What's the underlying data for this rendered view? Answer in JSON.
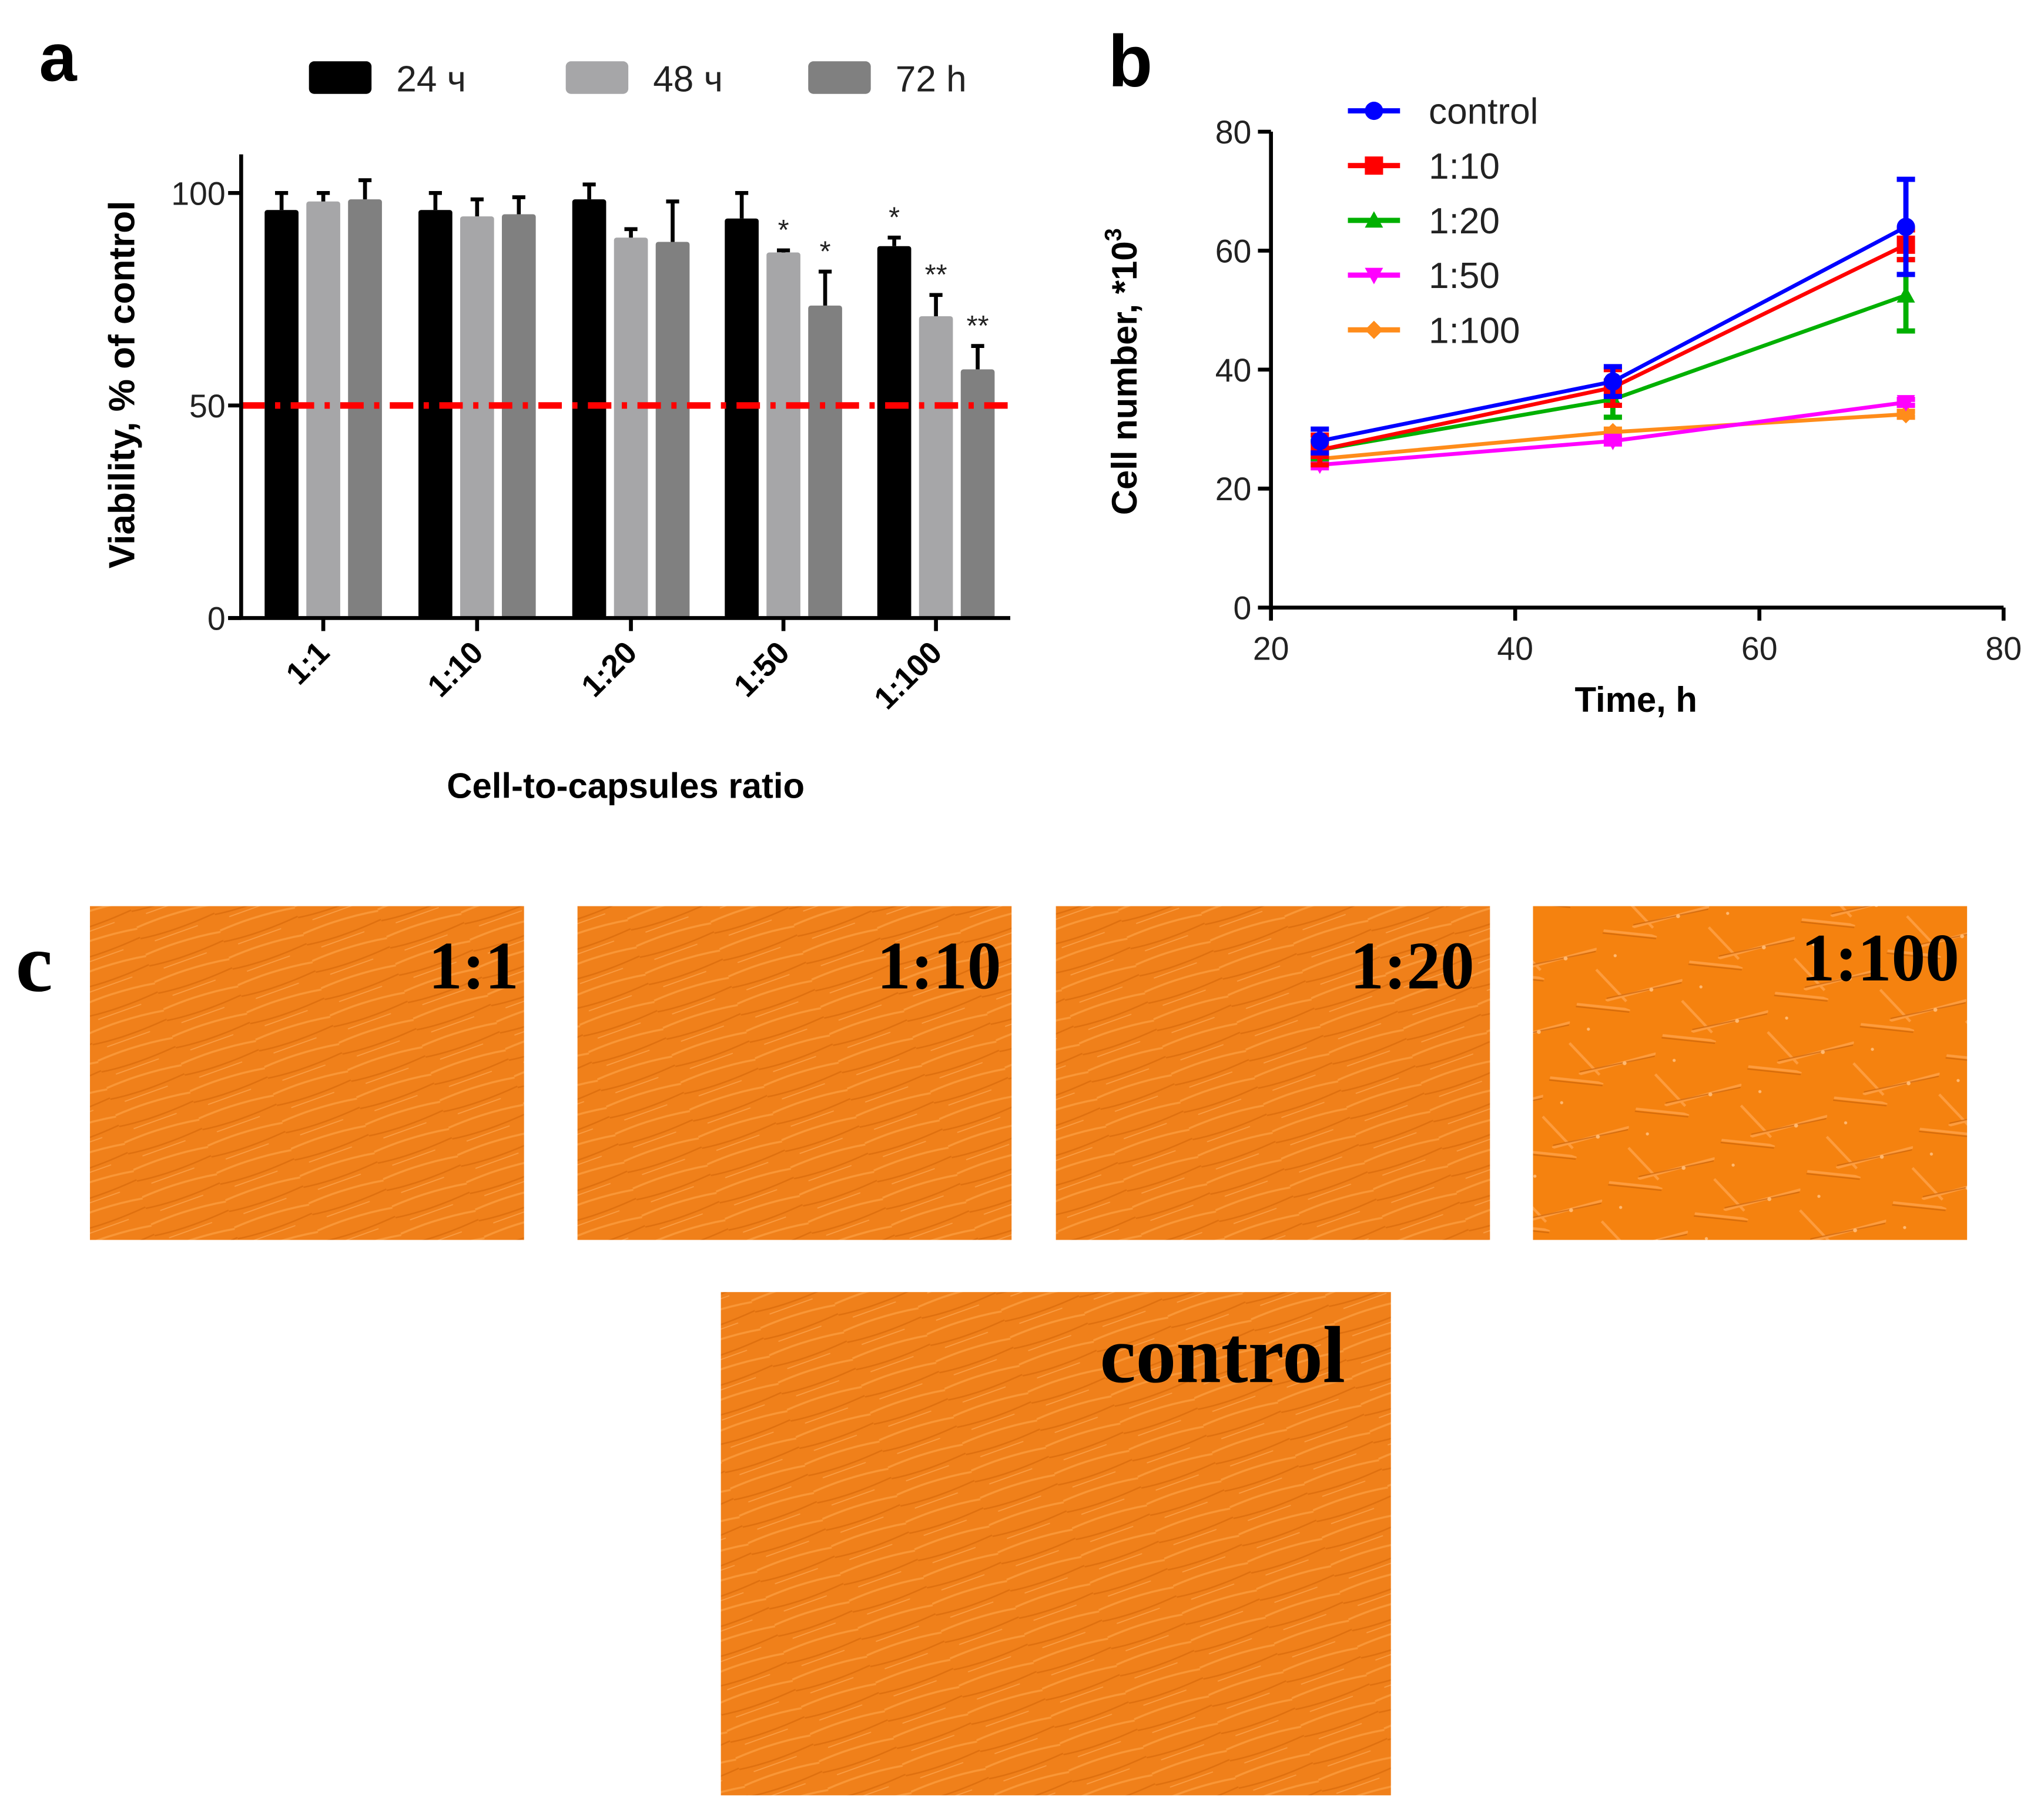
{
  "panel_labels": {
    "a": "a",
    "b": "b",
    "c": "c"
  },
  "chart_data": [
    {
      "type": "bar",
      "title": "",
      "xlabel": "Cell-to-capsules ratio",
      "ylabel": "Viability, % of control",
      "ylim": [
        0,
        110
      ],
      "yticks": [
        "0",
        "50",
        "100"
      ],
      "categories": [
        "1:1",
        "1:10",
        "1:20",
        "1:50",
        "1:100"
      ],
      "series": [
        {
          "name": "24 ч",
          "color": "#000000",
          "values": [
            96,
            96,
            98.5,
            94,
            87.5
          ],
          "errors": [
            4,
            4,
            3.5,
            6,
            2
          ],
          "annotations": [
            "",
            "",
            "",
            "",
            "*"
          ]
        },
        {
          "name": "48 ч",
          "color": "#a6a6a8",
          "values": [
            98,
            94.5,
            89.5,
            86,
            71
          ],
          "errors": [
            2,
            4,
            2,
            0.5,
            5
          ],
          "annotations": [
            "",
            "",
            "",
            "*",
            "**"
          ]
        },
        {
          "name": "72 h",
          "color": "#808080",
          "values": [
            98.5,
            95,
            88.5,
            73.5,
            58.5
          ],
          "errors": [
            4.5,
            4,
            9.5,
            8,
            5.5
          ],
          "annotations": [
            "",
            "",
            "",
            "*",
            "**"
          ]
        }
      ],
      "reference_line": {
        "value": 50,
        "color": "#ff0000",
        "style": "dash-dot"
      },
      "legend_position": "top"
    },
    {
      "type": "line",
      "title": "",
      "xlabel": "Time, h",
      "ylabel": "Cell number, *10",
      "ylabel_superscript": "3",
      "xlim": [
        20,
        80
      ],
      "ylim": [
        0,
        80
      ],
      "xticks": [
        "20",
        "40",
        "60",
        "80"
      ],
      "yticks": [
        "0",
        "20",
        "40",
        "60",
        "80"
      ],
      "x": [
        24,
        48,
        72
      ],
      "series": [
        {
          "name": "control",
          "color": "#0000ff",
          "marker": "circle",
          "values": [
            28,
            38,
            64
          ],
          "errors": [
            2,
            2.5,
            8
          ]
        },
        {
          "name": "1:10",
          "color": "#ff0000",
          "marker": "square",
          "values": [
            26.5,
            37,
            61
          ],
          "errors": [
            2.5,
            3,
            2.5
          ]
        },
        {
          "name": "1:20",
          "color": "#00b000",
          "marker": "triangle-up",
          "values": [
            26.5,
            35,
            52.5
          ],
          "errors": [
            1.5,
            3,
            6
          ]
        },
        {
          "name": "1:50",
          "color": "#ff00ff",
          "marker": "triangle-down",
          "values": [
            24,
            28,
            34.5
          ],
          "errors": [
            0.5,
            0.5,
            0.5
          ]
        },
        {
          "name": "1:100",
          "color": "#ff8c1a",
          "marker": "diamond",
          "values": [
            25,
            29.5,
            32.5
          ],
          "errors": [
            0.5,
            0.5,
            0.5
          ]
        }
      ],
      "legend_position": "top-left"
    }
  ],
  "micrographs": [
    {
      "label": "1:1"
    },
    {
      "label": "1:10"
    },
    {
      "label": "1:20"
    },
    {
      "label": "1:100"
    },
    {
      "label": "control"
    }
  ],
  "colors": {
    "micrograph": "#f5820f"
  }
}
